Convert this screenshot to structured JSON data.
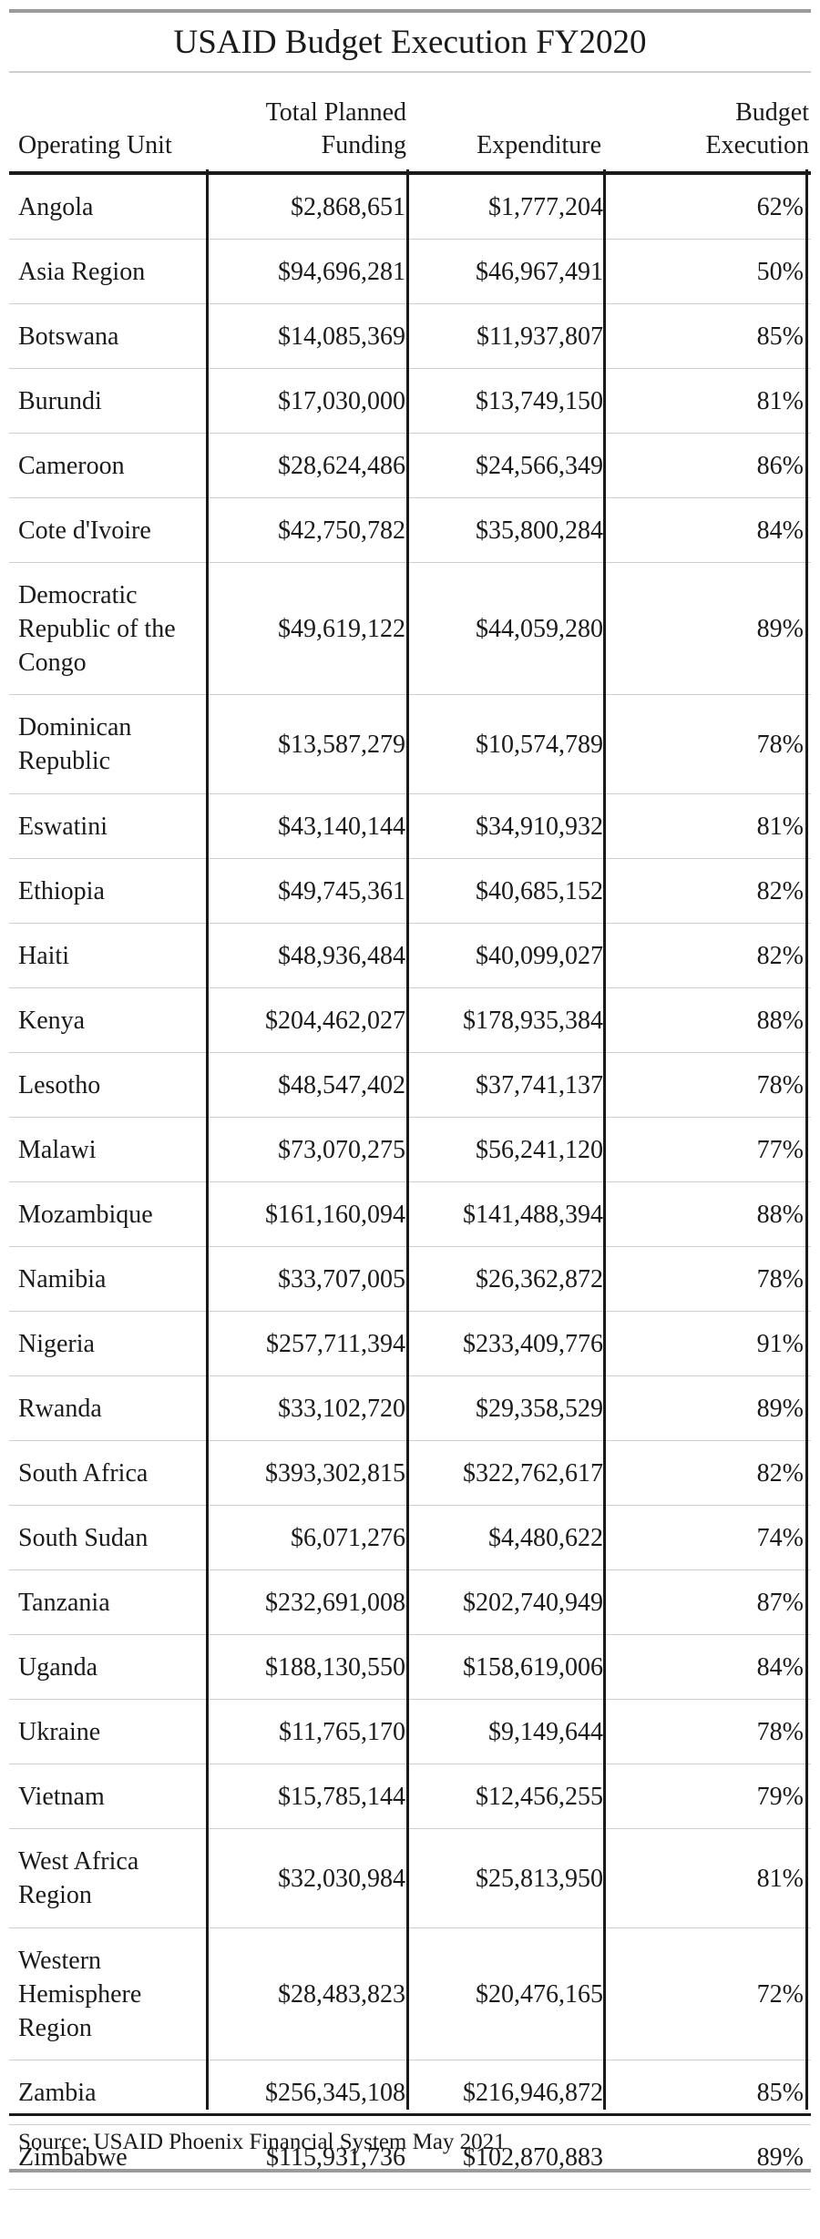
{
  "title": "USAID Budget Execution FY2020",
  "columns": {
    "unit": "Operating Unit",
    "planned_line1": "Total Planned",
    "planned_line2": "Funding",
    "expenditure": "Expenditure",
    "execution_line1": "Budget",
    "execution_line2": "Execution"
  },
  "rows": [
    {
      "unit": "Angola",
      "planned": "$2,868,651",
      "expenditure": "$1,777,204",
      "execution": "62%"
    },
    {
      "unit": "Asia Region",
      "planned": "$94,696,281",
      "expenditure": "$46,967,491",
      "execution": "50%"
    },
    {
      "unit": "Botswana",
      "planned": "$14,085,369",
      "expenditure": "$11,937,807",
      "execution": "85%"
    },
    {
      "unit": "Burundi",
      "planned": "$17,030,000",
      "expenditure": "$13,749,150",
      "execution": "81%"
    },
    {
      "unit": "Cameroon",
      "planned": "$28,624,486",
      "expenditure": "$24,566,349",
      "execution": "86%"
    },
    {
      "unit": "Cote d'Ivoire",
      "planned": "$42,750,782",
      "expenditure": "$35,800,284",
      "execution": "84%"
    },
    {
      "unit": "Democratic Republic of the Congo",
      "planned": "$49,619,122",
      "expenditure": "$44,059,280",
      "execution": "89%"
    },
    {
      "unit": "Dominican Republic",
      "planned": "$13,587,279",
      "expenditure": "$10,574,789",
      "execution": "78%"
    },
    {
      "unit": "Eswatini",
      "planned": "$43,140,144",
      "expenditure": "$34,910,932",
      "execution": "81%"
    },
    {
      "unit": "Ethiopia",
      "planned": "$49,745,361",
      "expenditure": "$40,685,152",
      "execution": "82%"
    },
    {
      "unit": "Haiti",
      "planned": "$48,936,484",
      "expenditure": "$40,099,027",
      "execution": "82%"
    },
    {
      "unit": "Kenya",
      "planned": "$204,462,027",
      "expenditure": "$178,935,384",
      "execution": "88%"
    },
    {
      "unit": "Lesotho",
      "planned": "$48,547,402",
      "expenditure": "$37,741,137",
      "execution": "78%"
    },
    {
      "unit": "Malawi",
      "planned": "$73,070,275",
      "expenditure": "$56,241,120",
      "execution": "77%"
    },
    {
      "unit": "Mozambique",
      "planned": "$161,160,094",
      "expenditure": "$141,488,394",
      "execution": "88%"
    },
    {
      "unit": "Namibia",
      "planned": "$33,707,005",
      "expenditure": "$26,362,872",
      "execution": "78%"
    },
    {
      "unit": "Nigeria",
      "planned": "$257,711,394",
      "expenditure": "$233,409,776",
      "execution": "91%"
    },
    {
      "unit": "Rwanda",
      "planned": "$33,102,720",
      "expenditure": "$29,358,529",
      "execution": "89%"
    },
    {
      "unit": "South Africa",
      "planned": "$393,302,815",
      "expenditure": "$322,762,617",
      "execution": "82%"
    },
    {
      "unit": "South Sudan",
      "planned": "$6,071,276",
      "expenditure": "$4,480,622",
      "execution": "74%"
    },
    {
      "unit": "Tanzania",
      "planned": "$232,691,008",
      "expenditure": "$202,740,949",
      "execution": "87%"
    },
    {
      "unit": "Uganda",
      "planned": "$188,130,550",
      "expenditure": "$158,619,006",
      "execution": "84%"
    },
    {
      "unit": "Ukraine",
      "planned": "$11,765,170",
      "expenditure": "$9,149,644",
      "execution": "78%"
    },
    {
      "unit": "Vietnam",
      "planned": "$15,785,144",
      "expenditure": "$12,456,255",
      "execution": "79%"
    },
    {
      "unit": "West Africa Region",
      "planned": "$32,030,984",
      "expenditure": "$25,813,950",
      "execution": "81%"
    },
    {
      "unit": "Western Hemisphere Region",
      "planned": "$28,483,823",
      "expenditure": "$20,476,165",
      "execution": "72%"
    },
    {
      "unit": "Zambia",
      "planned": "$256,345,108",
      "expenditure": "$216,946,872",
      "execution": "85%"
    },
    {
      "unit": "Zimbabwe",
      "planned": "$115,931,736",
      "expenditure": "$102,870,883",
      "execution": "89%"
    }
  ],
  "source": "Source: USAID Phoenix Financial System May 2021"
}
